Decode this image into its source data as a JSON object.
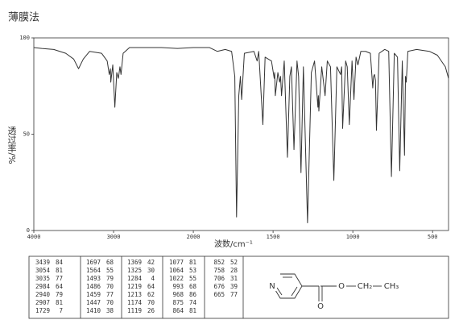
{
  "chart_data": {
    "type": "line",
    "title": "薄膜法",
    "xlabel": "波数/cm⁻¹",
    "ylabel": "透过率/%",
    "xscale": "piecewise",
    "xlim": [
      4000,
      400
    ],
    "xticks": [
      4000,
      3000,
      2000,
      1500,
      1000,
      500
    ],
    "ylim": [
      0,
      100
    ],
    "yticks": [
      0,
      50,
      100
    ],
    "color": "#333333",
    "x": [
      4000,
      3900,
      3750,
      3600,
      3500,
      3439,
      3380,
      3300,
      3150,
      3080,
      3054,
      3040,
      3035,
      3010,
      2984,
      2960,
      2940,
      2920,
      2907,
      2880,
      2800,
      2600,
      2400,
      2200,
      2000,
      1900,
      1850,
      1800,
      1760,
      1740,
      1729,
      1715,
      1705,
      1697,
      1680,
      1620,
      1600,
      1590,
      1564,
      1550,
      1510,
      1493,
      1490,
      1486,
      1470,
      1459,
      1453,
      1447,
      1430,
      1410,
      1395,
      1385,
      1369,
      1350,
      1340,
      1325,
      1310,
      1284,
      1260,
      1240,
      1219,
      1216,
      1213,
      1195,
      1174,
      1160,
      1140,
      1119,
      1100,
      1077,
      1070,
      1064,
      1045,
      1035,
      1022,
      1005,
      993,
      980,
      968,
      950,
      920,
      890,
      875,
      870,
      864,
      858,
      852,
      835,
      800,
      775,
      758,
      740,
      720,
      706,
      690,
      676,
      670,
      665,
      655,
      600,
      520,
      470,
      420,
      400
    ],
    "values": [
      95,
      94.5,
      94,
      92,
      89,
      84,
      89,
      93,
      92,
      88,
      81,
      84,
      77,
      86,
      64,
      82,
      79,
      85,
      81,
      92,
      95,
      95,
      95,
      94.5,
      95,
      95,
      93,
      94,
      93,
      80,
      7,
      70,
      80,
      68,
      92,
      93,
      88,
      93,
      55,
      90,
      88,
      79,
      82,
      70,
      82,
      77,
      80,
      70,
      88,
      38,
      80,
      85,
      42,
      88,
      80,
      30,
      85,
      4,
      82,
      88,
      64,
      70,
      62,
      85,
      70,
      88,
      85,
      26,
      85,
      81,
      85,
      53,
      88,
      85,
      55,
      88,
      68,
      90,
      86,
      93,
      93,
      92,
      74,
      80,
      81,
      78,
      52,
      92,
      94,
      93,
      28,
      92,
      90,
      31,
      88,
      39,
      80,
      77,
      93,
      94,
      93,
      91,
      85,
      79
    ],
    "peak_table": [
      [
        [
          3439,
          84
        ],
        [
          3054,
          81
        ],
        [
          3035,
          77
        ],
        [
          2984,
          64
        ],
        [
          2940,
          79
        ],
        [
          2907,
          81
        ],
        [
          1729,
          7
        ]
      ],
      [
        [
          1697,
          68
        ],
        [
          1564,
          55
        ],
        [
          1493,
          79
        ],
        [
          1486,
          70
        ],
        [
          1459,
          77
        ],
        [
          1447,
          70
        ],
        [
          1410,
          38
        ]
      ],
      [
        [
          1369,
          42
        ],
        [
          1325,
          30
        ],
        [
          1284,
          4
        ],
        [
          1219,
          64
        ],
        [
          1213,
          62
        ],
        [
          1174,
          70
        ],
        [
          1119,
          26
        ]
      ],
      [
        [
          1077,
          81
        ],
        [
          1064,
          53
        ],
        [
          1022,
          55
        ],
        [
          993,
          68
        ],
        [
          968,
          86
        ],
        [
          875,
          74
        ],
        [
          864,
          81
        ]
      ],
      [
        [
          852,
          52
        ],
        [
          758,
          28
        ],
        [
          706,
          31
        ],
        [
          676,
          39
        ],
        [
          665,
          77
        ]
      ]
    ],
    "structure_labels": [
      "N",
      "O",
      "O",
      "CH₂",
      "CH₃"
    ]
  }
}
